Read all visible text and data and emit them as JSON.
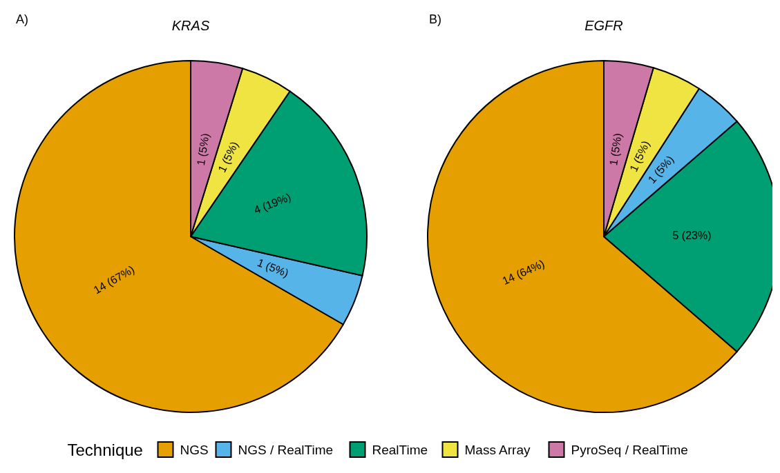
{
  "chart_data": [
    {
      "type": "pie",
      "title": "KRAS",
      "annotations": [
        "A)"
      ],
      "legend_title": "Technique",
      "legend": "bottom",
      "categories": [
        "NGS",
        "NGS / RealTime",
        "RealTime",
        "Mass Array",
        "PyroSeq / RealTime"
      ],
      "values": [
        14,
        1,
        4,
        1,
        1
      ],
      "value_labels": [
        "14 (67%)",
        "1 (5%)",
        "4 (19%)",
        "1 (5%)",
        "1 (5%)"
      ],
      "colors": [
        "#e69f00",
        "#56b4e9",
        "#009e73",
        "#f0e442",
        "#cc79a7"
      ]
    },
    {
      "type": "pie",
      "title": "EGFR",
      "annotations": [
        "B)"
      ],
      "categories": [
        null,
        null,
        null,
        null,
        null
      ],
      "values": [
        14,
        5,
        1,
        1,
        1
      ],
      "value_labels": [
        "14 (64%)",
        "5 (23%)",
        "1 (5%)",
        "1 (5%)",
        "1 (5%)"
      ],
      "colors": [
        "#e69f00",
        "#009e73",
        "#56b4e9",
        "#f0e442",
        "#cc79a7"
      ]
    }
  ]
}
